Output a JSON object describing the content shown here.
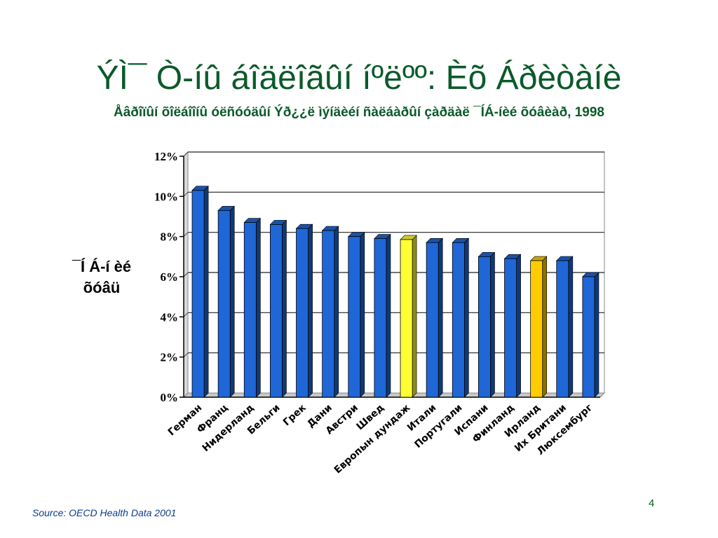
{
  "slide": {
    "title": "ÝÌ¯ Ò-íû áîäëîãûí íºëºº: Èõ Áðèòàíè",
    "subtitle": "Åâðîïûí õîëáîîíû óëñóóäûí Ýð¿¿ë ìýíäèéí ñàëáàðûí çàðäàë ¯ÍÁ-íèé õóâèàð, 1998",
    "source": "Source: OECD Health Data 2001",
    "page_number": "4"
  },
  "colors": {
    "title": "#0b5a2a",
    "bar_default": "#1f66d6",
    "bar_highlight_1": "#ffff33",
    "bar_highlight_2": "#ffcc00",
    "source_text": "#0b3d8c"
  },
  "chart_data": {
    "type": "bar",
    "ylabel": [
      "¯Í Á-í èé",
      "õóâü"
    ],
    "ylim": [
      0,
      12
    ],
    "yticks": [
      0,
      2,
      4,
      6,
      8,
      10,
      12
    ],
    "ytick_labels": [
      "0%",
      "2%",
      "4%",
      "6%",
      "8%",
      "10%",
      "12%"
    ],
    "grid": true,
    "categories": [
      "Герман",
      "Франц",
      "Нидерланд",
      "Бельги",
      "Грек",
      "Дани",
      "Австри",
      "Швед",
      "Европын дундаж",
      "Итали",
      "Португали",
      "Испани",
      "Финланд",
      "Ирланд",
      "Их Британи",
      "Люксембург"
    ],
    "values": [
      10.3,
      9.3,
      8.7,
      8.6,
      8.4,
      8.3,
      8.0,
      7.9,
      7.85,
      7.7,
      7.7,
      7.0,
      6.9,
      6.8,
      6.8,
      6.0
    ],
    "highlight": [
      "",
      "",
      "",
      "",
      "",
      "",
      "",
      "",
      "bar_highlight_1",
      "",
      "",
      "",
      "",
      "bar_highlight_2",
      "",
      ""
    ]
  }
}
